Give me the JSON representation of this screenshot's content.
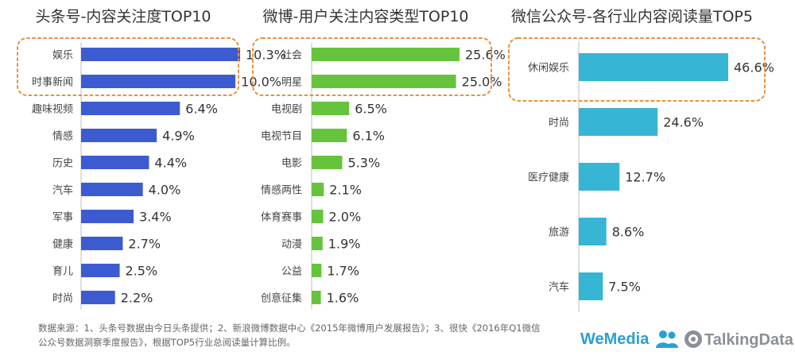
{
  "chart_data": [
    {
      "type": "bar",
      "orientation": "horizontal",
      "title": "头条号-内容关注度TOP10",
      "categories": [
        "娱乐",
        "时事新闻",
        "趣味视频",
        "情感",
        "历史",
        "汽车",
        "军事",
        "健康",
        "育儿",
        "时尚"
      ],
      "values": [
        10.3,
        10.0,
        6.4,
        4.9,
        4.4,
        4.0,
        3.4,
        2.7,
        2.5,
        2.2
      ],
      "value_labels": [
        "10.3%",
        "10.0%",
        "6.4%",
        "4.9%",
        "4.4%",
        "4.0%",
        "3.4%",
        "2.7%",
        "2.5%",
        "2.2%"
      ],
      "unit": "%",
      "color": "#3d5bd1",
      "highlighted": [
        "娱乐",
        "时事新闻"
      ]
    },
    {
      "type": "bar",
      "orientation": "horizontal",
      "title": "微博-用户关注内容类型TOP10",
      "categories": [
        "社会",
        "明星",
        "电视剧",
        "电视节目",
        "电影",
        "情感两性",
        "体育赛事",
        "动漫",
        "公益",
        "创意征集"
      ],
      "values": [
        25.6,
        25.0,
        6.5,
        6.1,
        5.3,
        2.1,
        2.0,
        1.9,
        1.7,
        1.6
      ],
      "value_labels": [
        "25.6%",
        "25.0%",
        "6.5%",
        "6.1%",
        "5.3%",
        "2.1%",
        "2.0%",
        "1.9%",
        "1.7%",
        "1.6%"
      ],
      "unit": "%",
      "color": "#66c43c",
      "highlighted": [
        "社会",
        "明星"
      ]
    },
    {
      "type": "bar",
      "orientation": "horizontal",
      "title": "微信公众号-各行业内容阅读量TOP5",
      "categories": [
        "休闲娱乐",
        "时尚",
        "医疗健康",
        "旅游",
        "汽车"
      ],
      "values": [
        46.6,
        24.6,
        12.7,
        8.6,
        7.5
      ],
      "value_labels": [
        "46.6%",
        "24.6%",
        "12.7%",
        "8.6%",
        "7.5%"
      ],
      "unit": "%",
      "color": "#36b5d4",
      "highlighted": [
        "休闲娱乐"
      ]
    }
  ],
  "footnote": "数据来源：1、头条号数据由今日头条提供；2、新浪微博数据中心《2015年微博用户发展报告》；3、很快《2016年Q1微信公众号数据洞察季度报告》，根据TOP5行业总阅读量计算比例。",
  "logos": {
    "wemedia_we": "We",
    "wemedia_media": "Media",
    "talkingdata": "TalkingData",
    "wemedia_color": "#2a9fd8",
    "talkingdata_color": "#8a8f98"
  },
  "highlight_color": "#e8913a"
}
